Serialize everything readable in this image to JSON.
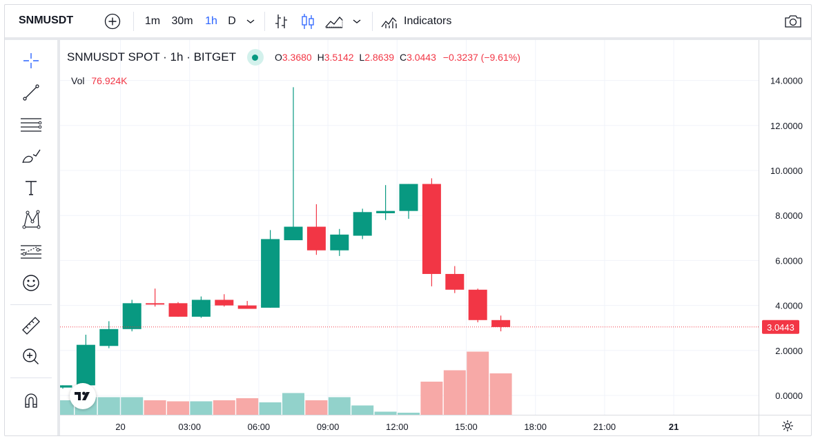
{
  "toolbar": {
    "symbol": "SNMUSDT",
    "intervals": [
      "1m",
      "30m",
      "1h",
      "D"
    ],
    "active_interval": "1h",
    "indicators_label": "Indicators",
    "icons": [
      "add-symbol-icon",
      "chevron-down-icon",
      "bar-chart-icon",
      "candles-icon",
      "area-chart-icon",
      "chart-type-chevron-icon",
      "indicators-icon",
      "camera-icon"
    ]
  },
  "left_tools": [
    "crosshair-icon",
    "trend-line-icon",
    "horizontal-lines-icon",
    "brush-icon",
    "text-icon",
    "pattern-icon",
    "fib-icon",
    "emoji-icon",
    "ruler-icon",
    "zoom-in-icon",
    "magnet-icon"
  ],
  "legend": {
    "title": "SNMUSDT SPOT · 1h · BITGET",
    "o_label": "O",
    "o": "3.3680",
    "h_label": "H",
    "h": "3.5142",
    "l_label": "L",
    "l": "2.8639",
    "c_label": "C",
    "c": "3.0443",
    "change": "−0.3237 (−9.61%)",
    "vol_label": "Vol",
    "vol": "76.924K"
  },
  "colors": {
    "up": "#089981",
    "down": "#f23645",
    "vol_up": "#92d2cb",
    "vol_down": "#f7a9a7",
    "grid": "#f0f3fa"
  },
  "chart_data": {
    "type": "candlestick",
    "ylim": [
      -1,
      14.8
    ],
    "y_ticks": [
      "14.0000",
      "12.0000",
      "10.0000",
      "8.0000",
      "6.0000",
      "4.0000",
      "2.0000",
      "0.0000"
    ],
    "y_tick_values": [
      14,
      12,
      10,
      8,
      6,
      4,
      2,
      0
    ],
    "x_ticks": [
      "20",
      "03:00",
      "06:00",
      "09:00",
      "12:00",
      "15:00",
      "18:00",
      "21:00",
      "21"
    ],
    "x_tick_index": [
      2.5,
      5.5,
      8.5,
      11.5,
      14.5,
      17.5,
      20.5,
      23.5,
      26.5
    ],
    "last_price": 3.0443,
    "last_price_label": "3.0443",
    "candles": [
      {
        "o": 0.35,
        "h": 0.45,
        "l": 0.3,
        "c": 0.45,
        "v": 0.7
      },
      {
        "o": 0.45,
        "h": 2.7,
        "l": 0.4,
        "c": 2.25,
        "v": 0.85
      },
      {
        "o": 2.2,
        "h": 3.3,
        "l": 2.1,
        "c": 2.95,
        "v": 0.85
      },
      {
        "o": 2.95,
        "h": 4.25,
        "l": 2.85,
        "c": 4.1,
        "v": 0.85
      },
      {
        "o": 4.1,
        "h": 4.75,
        "l": 3.95,
        "c": 4.05,
        "v": 0.7
      },
      {
        "o": 4.1,
        "h": 4.15,
        "l": 3.5,
        "c": 3.5,
        "v": 0.65
      },
      {
        "o": 3.5,
        "h": 4.4,
        "l": 3.45,
        "c": 4.25,
        "v": 0.65
      },
      {
        "o": 4.25,
        "h": 4.5,
        "l": 3.95,
        "c": 4.0,
        "v": 0.7
      },
      {
        "o": 4.0,
        "h": 4.2,
        "l": 3.85,
        "c": 3.85,
        "v": 0.8
      },
      {
        "o": 3.9,
        "h": 7.35,
        "l": 3.9,
        "c": 6.95,
        "v": 0.6
      },
      {
        "o": 6.9,
        "h": 13.7,
        "l": 6.9,
        "c": 7.5,
        "v": 1.05
      },
      {
        "o": 7.5,
        "h": 8.5,
        "l": 6.25,
        "c": 6.45,
        "v": 0.7
      },
      {
        "o": 6.45,
        "h": 7.4,
        "l": 6.2,
        "c": 7.15,
        "v": 0.85
      },
      {
        "o": 7.1,
        "h": 8.3,
        "l": 6.95,
        "c": 8.15,
        "v": 0.45
      },
      {
        "o": 8.1,
        "h": 9.35,
        "l": 7.8,
        "c": 8.2,
        "v": 0.15
      },
      {
        "o": 8.2,
        "h": 9.4,
        "l": 7.85,
        "c": 9.4,
        "v": 0.1
      },
      {
        "o": 9.4,
        "h": 9.65,
        "l": 4.85,
        "c": 5.4,
        "v": 1.6
      },
      {
        "o": 5.4,
        "h": 5.75,
        "l": 4.55,
        "c": 4.7,
        "v": 2.15
      },
      {
        "o": 4.7,
        "h": 4.75,
        "l": 3.25,
        "c": 3.35,
        "v": 3.05
      },
      {
        "o": 3.35,
        "h": 3.55,
        "l": 2.85,
        "c": 3.04,
        "v": 2.0
      }
    ]
  }
}
